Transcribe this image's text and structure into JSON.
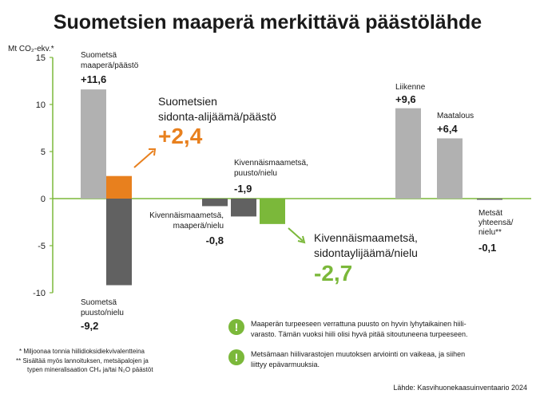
{
  "chart_data": {
    "type": "bar",
    "title": "Suometsien maaperä merkittävä päästölähde",
    "ylabel": "Mt CO₂-ekv.*",
    "ylim": [
      -10,
      15
    ],
    "yticks": [
      "15",
      "10",
      "5",
      "0",
      "-5",
      "-10"
    ],
    "grid": false,
    "bars": [
      {
        "id": "suo-maapera",
        "value": 11.6,
        "color": "#b1b1b1",
        "label": [
          "Suometsä",
          "maaperä/päästö"
        ],
        "value_label": "+11,6"
      },
      {
        "id": "suo-puusto",
        "value": -9.2,
        "color": "#616161",
        "label": [
          "Suometsä",
          "puusto/nielu"
        ],
        "value_label": "-9,2"
      },
      {
        "id": "suo-netto",
        "value": 2.4,
        "color": "#e8801e",
        "label": [
          "Suometsien",
          "sidonta-alijäämä/päästö"
        ],
        "value_label": "+2,4"
      },
      {
        "id": "kivennais-maapera",
        "value": -0.8,
        "color": "#616161",
        "label": [
          "Kivennäismaametsä,",
          "maaperä/nielu"
        ],
        "value_label": "-0,8"
      },
      {
        "id": "kivennais-puusto",
        "value": -1.9,
        "color": "#616161",
        "label": [
          "Kivennäismaametsä,",
          "puusto/nielu"
        ],
        "value_label": "-1,9"
      },
      {
        "id": "kivennais-netto",
        "value": -2.7,
        "color": "#7bb83a",
        "label": [
          "Kivennäismaametsä,",
          "sidontaylijäämä/nielu"
        ],
        "value_label": "-2,7"
      },
      {
        "id": "liikenne",
        "value": 9.6,
        "color": "#b1b1b1",
        "label": [
          "Liikenne"
        ],
        "value_label": "+9,6"
      },
      {
        "id": "maatalous",
        "value": 6.4,
        "color": "#b1b1b1",
        "label": [
          "Maatalous"
        ],
        "value_label": "+6,4"
      },
      {
        "id": "metsat-yhteensa",
        "value": -0.1,
        "color": "#616161",
        "label": [
          "Metsät",
          "yhteensä/",
          "nielu**"
        ],
        "value_label": "-0,1"
      }
    ]
  },
  "notes": [
    {
      "icon": "exclamation-icon",
      "text": [
        "Maaperän turpeeseen verrattuna puusto on hyvin lyhytaikainen hiili-",
        "varasto. Tämän vuoksi hiili olisi hyvä pitää sitoutuneena turpeeseen."
      ]
    },
    {
      "icon": "exclamation-icon",
      "text": [
        "Metsämaan hiilivarastojen muutoksen arviointi on vaikeaa, ja siihen",
        "liittyy epävarmuuksia."
      ]
    }
  ],
  "footnotes": [
    "*  Miljoonaa tonnia hiilidioksidiekvivalentteina",
    "**  Sisältää myös lannoituksen, metsäpalojen ja",
    "typen mineralisaation CH₄ ja/tai N₂O päästöt"
  ],
  "source": "Lähde: Kasvihuonekaasuinventaario 2024",
  "colors": {
    "accent_green": "#7bb83a",
    "accent_orange": "#e8801e",
    "axis": "#7bb83a"
  }
}
